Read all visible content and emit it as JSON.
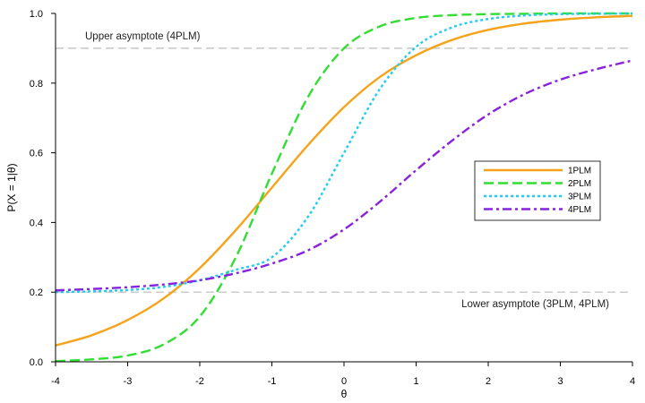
{
  "chart_data": {
    "type": "line",
    "xlabel": "θ",
    "ylabel": "P(X = 1|θ)",
    "xlim": [
      -4,
      4
    ],
    "ylim": [
      0,
      1
    ],
    "xticks": [
      "-4",
      "-3",
      "-2",
      "-1",
      "0",
      "1",
      "2",
      "3",
      "4"
    ],
    "yticks": [
      "0.0",
      "0.2",
      "0.4",
      "0.6",
      "0.8",
      "1.0"
    ],
    "grid": false,
    "legend_position": "right",
    "x": [
      -4,
      -3.5,
      -3,
      -2.5,
      -2,
      -1.5,
      -1,
      -0.5,
      0,
      0.5,
      1,
      1.5,
      2,
      2.5,
      3,
      3.5,
      4
    ],
    "series": [
      {
        "name": "1PLM",
        "color": "#f5a31a",
        "dash": "solid",
        "values": [
          0.047,
          0.076,
          0.12,
          0.182,
          0.269,
          0.378,
          0.5,
          0.622,
          0.731,
          0.818,
          0.88,
          0.924,
          0.953,
          0.971,
          0.982,
          0.989,
          0.993
        ]
      },
      {
        "name": "2PLM",
        "color": "#33dd33",
        "dash": "dashed",
        "values": [
          0.002,
          0.007,
          0.018,
          0.05,
          0.13,
          0.3,
          0.54,
          0.76,
          0.9,
          0.963,
          0.987,
          0.995,
          0.998,
          0.999,
          1.0,
          1.0,
          1.0
        ]
      },
      {
        "name": "3PLM",
        "color": "#22ccee",
        "dash": "dotted",
        "values": [
          0.2,
          0.202,
          0.206,
          0.215,
          0.234,
          0.264,
          0.3,
          0.416,
          0.6,
          0.784,
          0.904,
          0.96,
          0.984,
          0.994,
          0.998,
          0.999,
          1.0
        ]
      },
      {
        "name": "4PLM",
        "color": "#8822dd",
        "dash": "dashdot",
        "values": [
          0.205,
          0.209,
          0.214,
          0.222,
          0.234,
          0.254,
          0.282,
          0.32,
          0.38,
          0.46,
          0.55,
          0.635,
          0.71,
          0.768,
          0.81,
          0.84,
          0.865
        ]
      }
    ],
    "reference_lines": [
      {
        "y": 0.9,
        "label": "Upper asymptote (4PLM)",
        "color": "#bbbbbb"
      },
      {
        "y": 0.2,
        "label": "Lower asymptote (3PLM, 4PLM)",
        "color": "#bbbbbb"
      }
    ]
  }
}
